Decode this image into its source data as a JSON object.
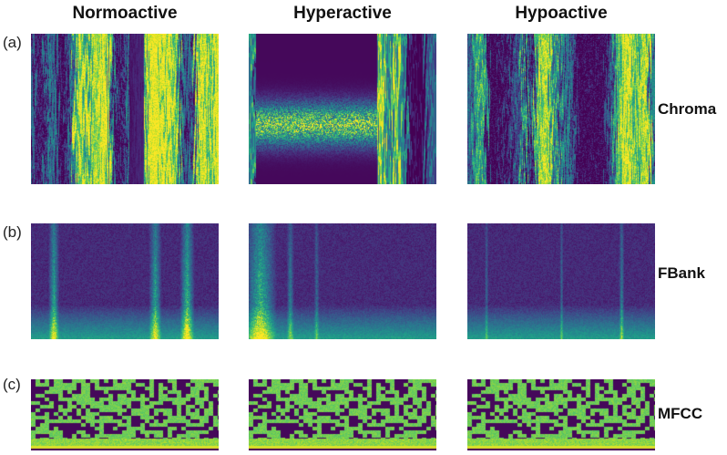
{
  "columns": [
    "Normoactive",
    "Hyperactive",
    "Hypoactive"
  ],
  "rows": [
    {
      "tag": "(a)",
      "name": "Chroma"
    },
    {
      "tag": "(b)",
      "name": "FBank"
    },
    {
      "tag": "(c)",
      "name": "MFCC"
    }
  ]
}
